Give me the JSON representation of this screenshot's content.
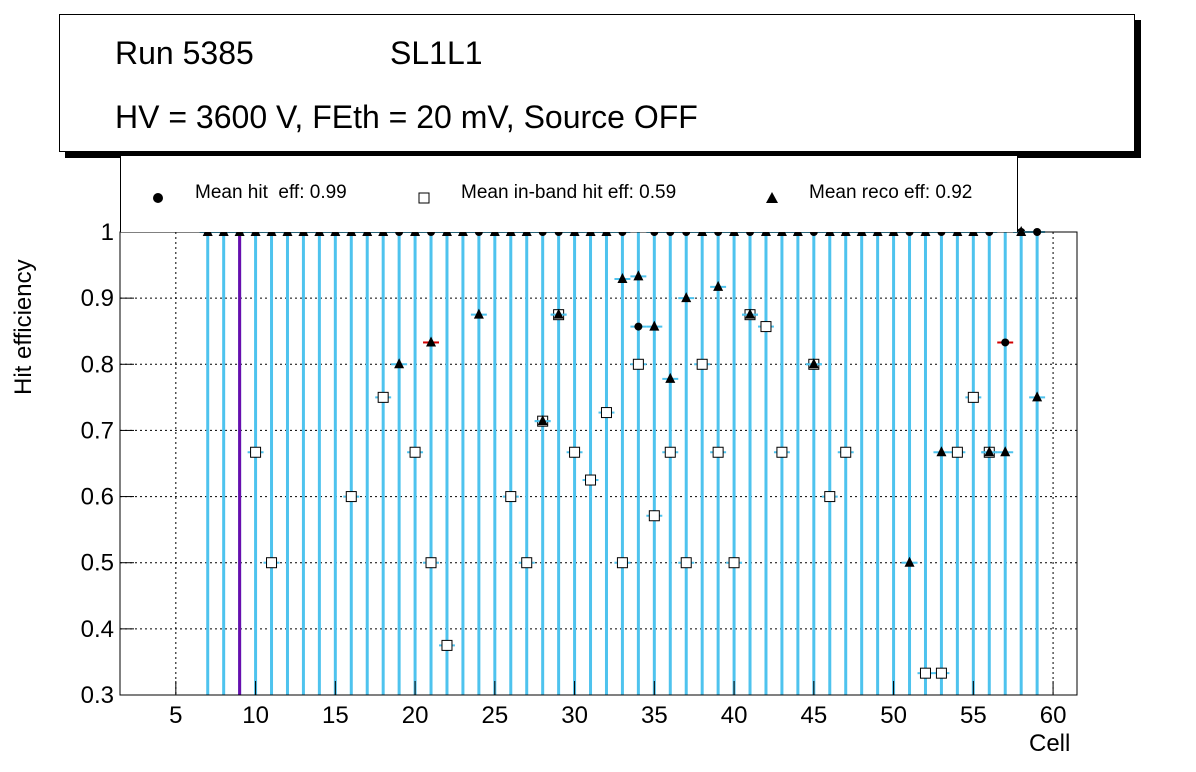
{
  "header": {
    "run": "Run 5385",
    "layer": "SL1L1",
    "conditions": "HV = 3600 V, FEth = 20 mV, Source OFF"
  },
  "legend": {
    "hit": "Mean hit  eff: 0.99",
    "inband": "Mean in-band hit eff: 0.59",
    "reco": "Mean reco eff: 0.92"
  },
  "colors": {
    "frame": "#000000",
    "grid": "#000000",
    "stems": "#4ec3ee",
    "purple": "#6a0dad",
    "red": "#d00000",
    "marker_fill_open": "#ffffff"
  },
  "chart_data": {
    "type": "scatter",
    "title": "",
    "xlabel": "Cell",
    "ylabel": "Hit efficiency",
    "xlim": [
      1.5,
      61.5
    ],
    "ylim": [
      0.3,
      1.0
    ],
    "xticks": [
      5,
      10,
      15,
      20,
      25,
      30,
      35,
      40,
      45,
      50,
      55,
      60
    ],
    "yticks": [
      0.3,
      0.4,
      0.5,
      0.6,
      0.7,
      0.8,
      0.9,
      1
    ],
    "grid": true,
    "legend_position": "top",
    "series": [
      {
        "name": "Mean hit  eff: 0.99",
        "marker": "filled-circle",
        "x": [
          7,
          8,
          9,
          10,
          11,
          12,
          13,
          14,
          15,
          16,
          17,
          18,
          19,
          20,
          21,
          22,
          23,
          24,
          25,
          26,
          27,
          28,
          29,
          30,
          31,
          32,
          33,
          34,
          35,
          36,
          37,
          38,
          39,
          40,
          41,
          42,
          43,
          44,
          45,
          46,
          47,
          48,
          49,
          50,
          51,
          52,
          53,
          54,
          55,
          56,
          57,
          58,
          59
        ],
        "y": [
          1,
          1,
          1,
          1,
          1,
          1,
          1,
          1,
          1,
          1,
          1,
          1,
          1,
          1,
          1,
          1,
          1,
          1,
          1,
          1,
          1,
          1,
          1,
          1,
          1,
          1,
          1,
          0.857,
          1,
          1,
          1,
          1,
          1,
          1,
          1,
          1,
          1,
          1,
          1,
          1,
          1,
          1,
          1,
          1,
          1,
          1,
          1,
          1,
          1,
          1,
          0.833,
          1,
          1
        ]
      },
      {
        "name": "Mean in-band hit eff: 0.59",
        "marker": "open-square",
        "x": [
          10,
          11,
          16,
          18,
          20,
          21,
          22,
          26,
          27,
          28,
          29,
          30,
          31,
          32,
          33,
          34,
          35,
          36,
          37,
          38,
          39,
          40,
          41,
          42,
          43,
          45,
          46,
          47,
          52,
          53,
          54,
          55,
          56
        ],
        "y": [
          0.667,
          0.5,
          0.6,
          0.75,
          0.667,
          0.5,
          0.375,
          0.6,
          0.5,
          0.714,
          0.875,
          0.667,
          0.625,
          0.727,
          0.5,
          0.8,
          0.571,
          0.667,
          0.5,
          0.8,
          0.667,
          0.5,
          0.875,
          0.857,
          0.667,
          0.8,
          0.6,
          0.667,
          0.333,
          0.333,
          0.667,
          0.75,
          0.667
        ]
      },
      {
        "name": "Mean reco eff: 0.92",
        "marker": "filled-triangle",
        "x": [
          7,
          8,
          9,
          10,
          11,
          12,
          13,
          14,
          15,
          16,
          17,
          18,
          19,
          20,
          21,
          22,
          23,
          24,
          25,
          26,
          27,
          28,
          29,
          30,
          31,
          32,
          33,
          34,
          35,
          36,
          37,
          38,
          39,
          40,
          41,
          42,
          43,
          44,
          45,
          46,
          47,
          48,
          49,
          50,
          51,
          52,
          53,
          54,
          55,
          56,
          57,
          58,
          59
        ],
        "y": [
          1,
          1,
          1,
          1,
          1,
          1,
          1,
          1,
          1,
          1,
          1,
          1,
          0.8,
          1,
          0.833,
          1,
          1,
          0.875,
          1,
          1,
          1,
          0.714,
          0.875,
          1,
          1,
          1,
          0.929,
          0.933,
          0.857,
          0.778,
          0.9,
          1,
          0.917,
          1,
          0.875,
          1,
          1,
          1,
          0.8,
          1,
          1,
          1,
          1,
          1,
          0.5,
          1,
          0.667,
          1,
          1,
          0.667,
          0.667,
          1,
          0.75
        ]
      }
    ]
  }
}
